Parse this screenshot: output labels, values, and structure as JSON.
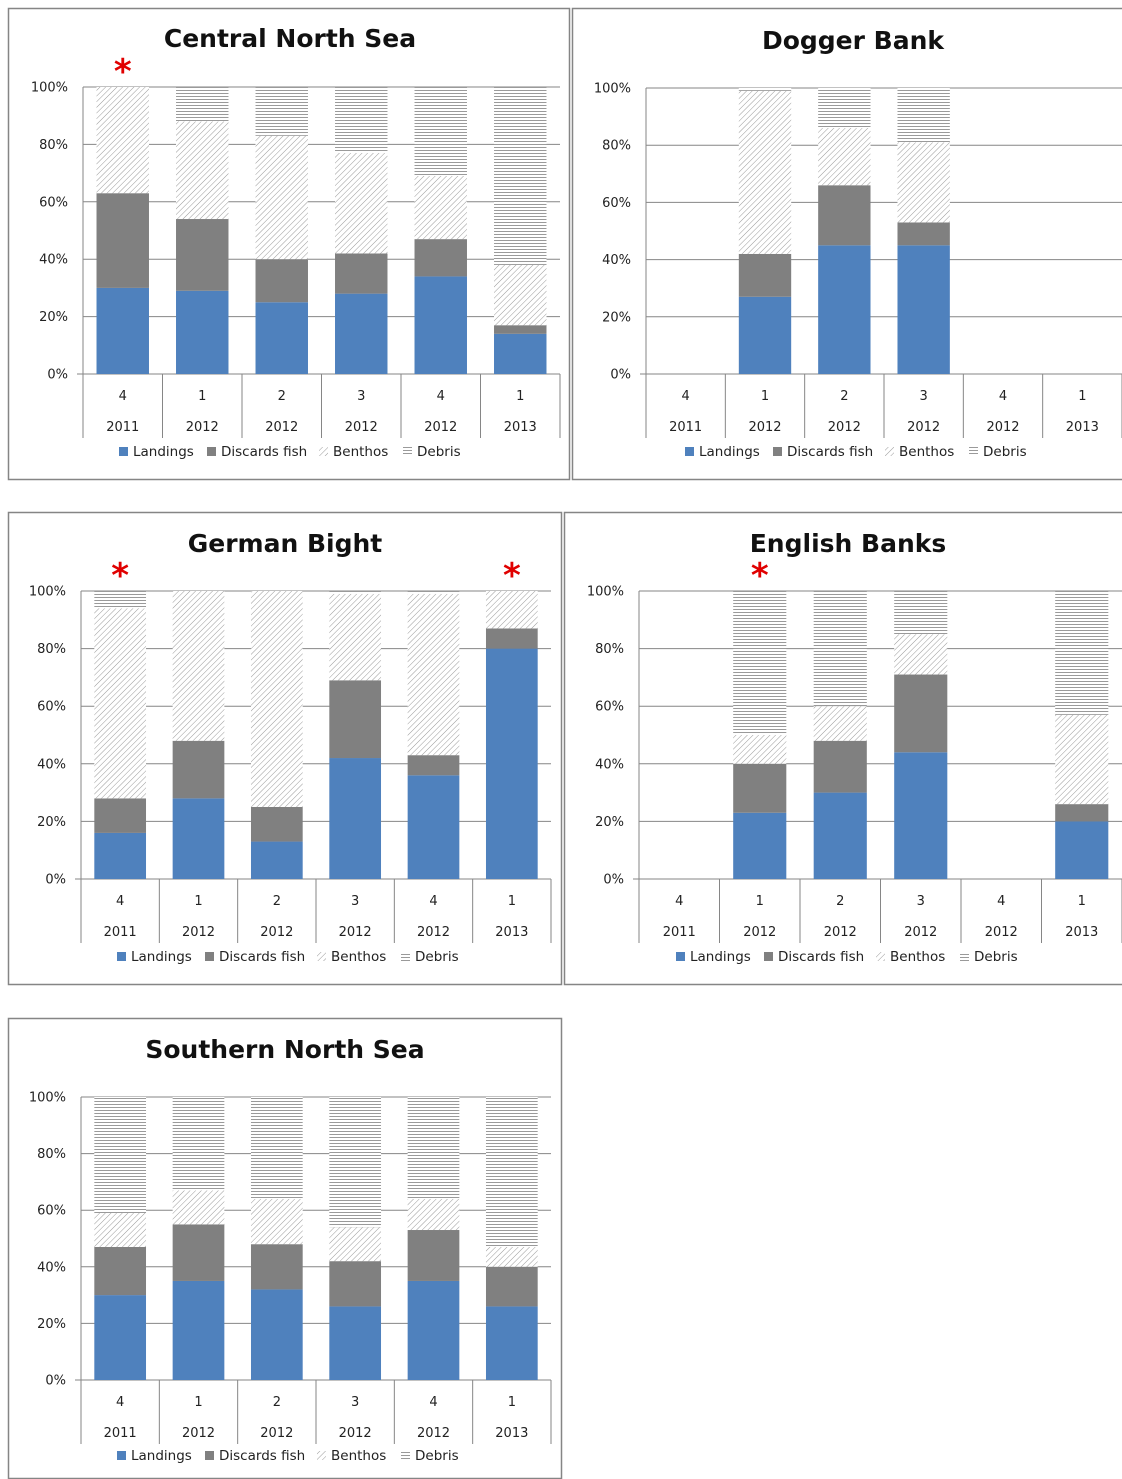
{
  "chart_data": [
    {
      "type": "bar",
      "stacked": true,
      "percent": true,
      "title": "Central North Sea",
      "categories": [
        [
          "4",
          "2011"
        ],
        [
          "1",
          "2012"
        ],
        [
          "2",
          "2012"
        ],
        [
          "3",
          "2012"
        ],
        [
          "4",
          "2012"
        ],
        [
          "1",
          "2013"
        ]
      ],
      "series": [
        {
          "name": "Landings",
          "values": [
            30,
            29,
            25,
            28,
            34,
            14
          ]
        },
        {
          "name": "Discards fish",
          "values": [
            33,
            25,
            15,
            14,
            13,
            3
          ]
        },
        {
          "name": "Benthos",
          "values": [
            37,
            34,
            43,
            35,
            22,
            21
          ]
        },
        {
          "name": "Debris",
          "values": [
            0,
            12,
            17,
            23,
            31,
            62
          ]
        }
      ],
      "ylim": [
        0,
        100
      ],
      "yticks": [
        "0%",
        "20%",
        "40%",
        "60%",
        "80%",
        "100%"
      ],
      "legend": "bottom",
      "grid": true,
      "asterisks": [
        0
      ],
      "asterisk_label": "*"
    },
    {
      "type": "bar",
      "stacked": true,
      "percent": true,
      "title": "Dogger Bank",
      "categories": [
        [
          "4",
          "2011"
        ],
        [
          "1",
          "2012"
        ],
        [
          "2",
          "2012"
        ],
        [
          "3",
          "2012"
        ],
        [
          "4",
          "2012"
        ],
        [
          "1",
          "2013"
        ]
      ],
      "series": [
        {
          "name": "Landings",
          "values": [
            0,
            27,
            45,
            45,
            0,
            0
          ]
        },
        {
          "name": "Discards fish",
          "values": [
            0,
            15,
            21,
            8,
            0,
            0
          ]
        },
        {
          "name": "Benthos",
          "values": [
            0,
            57,
            20,
            28,
            0,
            0
          ]
        },
        {
          "name": "Debris",
          "values": [
            0,
            1,
            14,
            19,
            0,
            0
          ]
        }
      ],
      "ylim": [
        0,
        100
      ],
      "yticks": [
        "0%",
        "20%",
        "40%",
        "60%",
        "80%",
        "100%"
      ],
      "legend": "bottom",
      "grid": true,
      "asterisks": [],
      "asterisk_label": "*"
    },
    {
      "type": "bar",
      "stacked": true,
      "percent": true,
      "title": "German Bight",
      "categories": [
        [
          "4",
          "2011"
        ],
        [
          "1",
          "2012"
        ],
        [
          "2",
          "2012"
        ],
        [
          "3",
          "2012"
        ],
        [
          "4",
          "2012"
        ],
        [
          "1",
          "2013"
        ]
      ],
      "series": [
        {
          "name": "Landings",
          "values": [
            16,
            28,
            13,
            42,
            36,
            80
          ]
        },
        {
          "name": "Discards fish",
          "values": [
            12,
            20,
            12,
            27,
            7,
            7
          ]
        },
        {
          "name": "Benthos",
          "values": [
            66,
            52,
            75,
            30,
            56,
            13
          ]
        },
        {
          "name": "Debris",
          "values": [
            6,
            0,
            0,
            1,
            1,
            0
          ]
        }
      ],
      "ylim": [
        0,
        100
      ],
      "yticks": [
        "0%",
        "20%",
        "40%",
        "60%",
        "80%",
        "100%"
      ],
      "legend": "bottom",
      "grid": true,
      "asterisks": [
        0,
        5
      ],
      "asterisk_label": "*"
    },
    {
      "type": "bar",
      "stacked": true,
      "percent": true,
      "title": "English Banks",
      "categories": [
        [
          "4",
          "2011"
        ],
        [
          "1",
          "2012"
        ],
        [
          "2",
          "2012"
        ],
        [
          "3",
          "2012"
        ],
        [
          "4",
          "2012"
        ],
        [
          "1",
          "2013"
        ]
      ],
      "series": [
        {
          "name": "Landings",
          "values": [
            0,
            23,
            30,
            44,
            0,
            20
          ]
        },
        {
          "name": "Discards fish",
          "values": [
            0,
            17,
            18,
            27,
            0,
            6
          ]
        },
        {
          "name": "Benthos",
          "values": [
            0,
            10,
            12,
            14,
            0,
            31
          ]
        },
        {
          "name": "Debris",
          "values": [
            0,
            50,
            40,
            15,
            0,
            43
          ]
        }
      ],
      "ylim": [
        0,
        100
      ],
      "yticks": [
        "0%",
        "20%",
        "40%",
        "60%",
        "80%",
        "100%"
      ],
      "legend": "bottom",
      "grid": true,
      "asterisks": [
        1
      ],
      "asterisk_label": "*"
    },
    {
      "type": "bar",
      "stacked": true,
      "percent": true,
      "title": "Southern North Sea",
      "categories": [
        [
          "4",
          "2011"
        ],
        [
          "1",
          "2012"
        ],
        [
          "2",
          "2012"
        ],
        [
          "3",
          "2012"
        ],
        [
          "4",
          "2012"
        ],
        [
          "1",
          "2013"
        ]
      ],
      "series": [
        {
          "name": "Landings",
          "values": [
            30,
            35,
            32,
            26,
            35,
            26
          ]
        },
        {
          "name": "Discards fish",
          "values": [
            17,
            20,
            16,
            16,
            18,
            14
          ]
        },
        {
          "name": "Benthos",
          "values": [
            12,
            12,
            16,
            12,
            11,
            7
          ]
        },
        {
          "name": "Debris",
          "values": [
            41,
            33,
            36,
            46,
            36,
            53
          ]
        }
      ],
      "ylim": [
        0,
        100
      ],
      "yticks": [
        "0%",
        "20%",
        "40%",
        "60%",
        "80%",
        "100%"
      ],
      "legend": "bottom",
      "grid": true,
      "asterisks": [],
      "asterisk_label": "*"
    }
  ],
  "colors": {
    "landings": "#4f81bd",
    "discards": "#808080",
    "pattern_line": "#9a9a9a",
    "grid": "#868686",
    "frame": "#858585"
  }
}
